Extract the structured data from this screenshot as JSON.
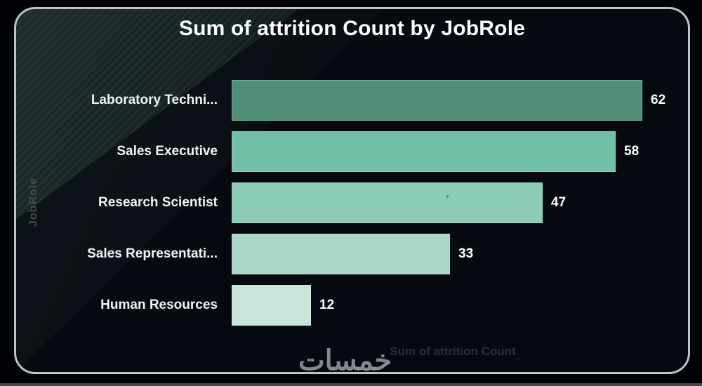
{
  "chart_data": {
    "type": "bar",
    "orientation": "horizontal",
    "title": "Sum of attrition Count by JobRole",
    "categories": [
      "Laboratory Techni...",
      "Sales Executive",
      "Research Scientist",
      "Sales Representati...",
      "Human Resources"
    ],
    "values": [
      62,
      58,
      47,
      33,
      12
    ],
    "xlabel": "Sum of attrition Count",
    "ylabel": "JobRole",
    "xlim": [
      0,
      62
    ],
    "grid": false,
    "legend": false,
    "data_labels": true,
    "bar_colors": [
      "#528f78",
      "#6fc0a7",
      "#8ccbb6",
      "#a9d8c6",
      "#c7e5d9"
    ]
  },
  "watermark": {
    "text": "خمسات"
  },
  "colors": {
    "panel_background": "#060a10",
    "panel_border": "#bdc3c8",
    "title_text": "#ffffff",
    "category_label": "#f2f4f6",
    "value_label": "#ffffff",
    "x_axis_title": "#2a3136",
    "y_axis_title": "#474d47",
    "watermark": "#9aa0a5"
  }
}
